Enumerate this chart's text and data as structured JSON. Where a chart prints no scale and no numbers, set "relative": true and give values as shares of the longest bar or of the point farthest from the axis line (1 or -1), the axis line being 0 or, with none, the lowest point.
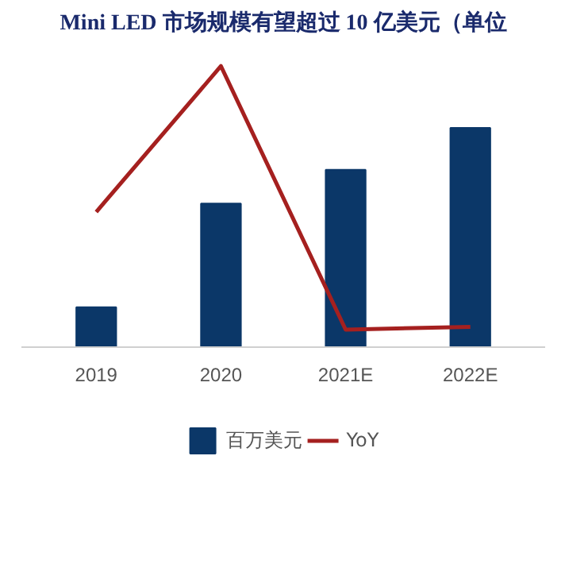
{
  "chart_data": {
    "type": "bar",
    "title": "Mini LED 市场规模有望超过 10 亿美元（单位",
    "relative": true,
    "categories": [
      "2019",
      "2020",
      "2021E",
      "2022E"
    ],
    "series": [
      {
        "name": "百万美元",
        "color": "#0b3768",
        "values": [
          0.14,
          0.51,
          0.63,
          0.78
        ]
      },
      {
        "name": "YoY",
        "type": "line",
        "color": "#a5201f",
        "values": [
          0.48,
          1,
          0.06,
          0.07
        ]
      }
    ],
    "legend": "bottom",
    "line_style": "solid"
  }
}
